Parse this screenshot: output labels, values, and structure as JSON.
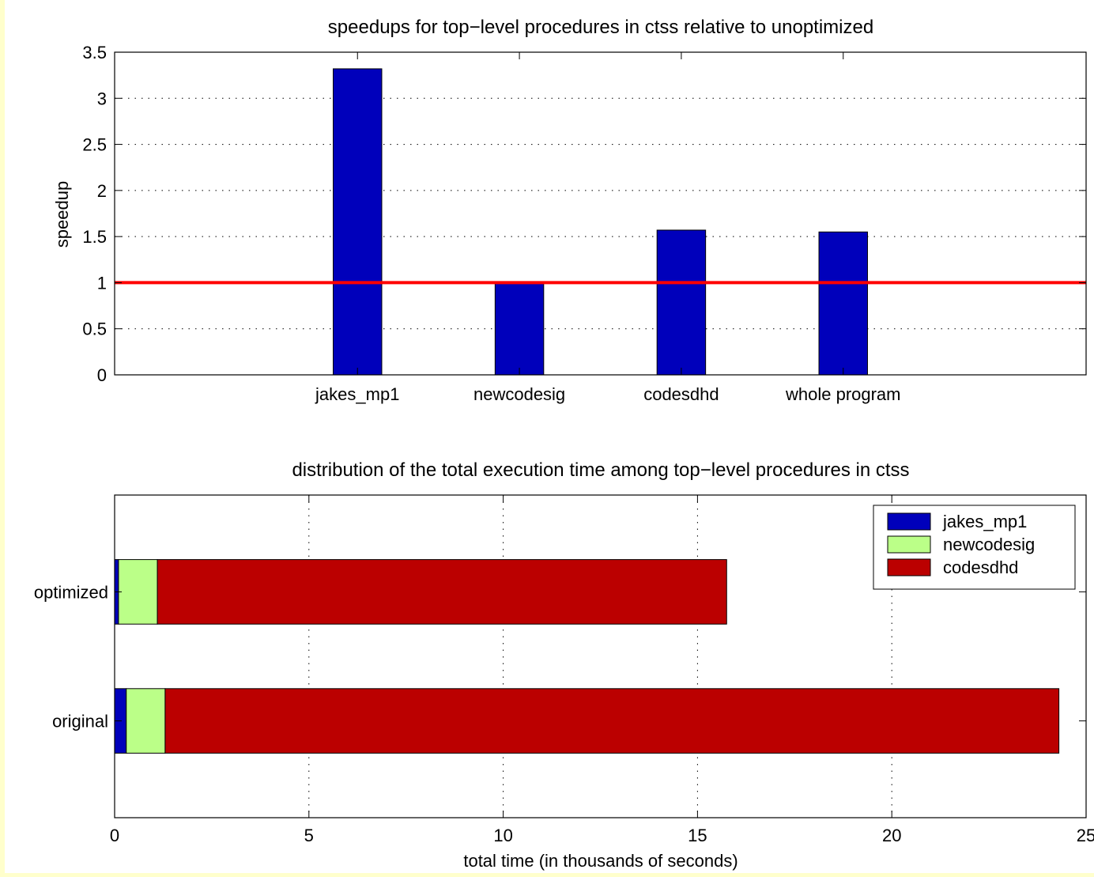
{
  "chart_data": [
    {
      "type": "bar",
      "title": "speedups for top−level procedures in ctss relative to unoptimized",
      "xlabel": "",
      "ylabel": "speedup",
      "categories": [
        "jakes_mp1",
        "newcodesig",
        "codesdhd",
        "whole program"
      ],
      "values": [
        3.32,
        1.0,
        1.57,
        1.55
      ],
      "ylim": [
        0,
        3.5
      ],
      "yticks": [
        "0",
        "0.5",
        "1",
        "1.5",
        "2",
        "2.5",
        "3",
        "3.5"
      ],
      "reference_line": {
        "y": 1,
        "color": "#ff0000"
      },
      "grid": "y-dotted",
      "colors": {
        "bar": "#0000bb"
      }
    },
    {
      "type": "bar",
      "orientation": "horizontal",
      "stacked": true,
      "title": "distribution of the total execution time among top−level procedures in ctss",
      "xlabel": "total time (in thousands of seconds)",
      "ylabel": "",
      "categories": [
        "optimized",
        "original"
      ],
      "series": [
        {
          "name": "jakes_mp1",
          "values": [
            0.1,
            0.3
          ],
          "color": "#0000bb"
        },
        {
          "name": "newcodesig",
          "values": [
            1.0,
            1.0
          ],
          "color": "#bbff88"
        },
        {
          "name": "codesdhd",
          "values": [
            14.65,
            23.0
          ],
          "color": "#bb0000"
        }
      ],
      "xlim": [
        0,
        25
      ],
      "xticks": [
        "0",
        "5",
        "10",
        "15",
        "20",
        "25"
      ],
      "legend": "top-right",
      "grid": "x-dotted"
    }
  ]
}
